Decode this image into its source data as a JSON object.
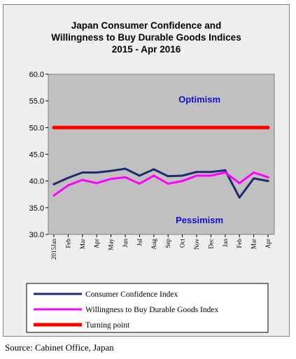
{
  "chart_data": {
    "type": "line",
    "title_lines": [
      "Japan Consumer Confidence and",
      "Willingness to Buy Durable Goods Indices",
      "2015 - Apr  2016"
    ],
    "categories": [
      "2015Jan",
      "Feb",
      "Mar",
      "Apr",
      "May",
      "Jun",
      "Jul",
      "Aug",
      "Sep",
      "Oct",
      "Nov",
      "Dec",
      "Jan",
      "Feb",
      "Mar",
      "Apr"
    ],
    "y_ticks": [
      "60.0",
      "55.0",
      "50.0",
      "45.0",
      "40.0",
      "35.0",
      "30.0"
    ],
    "ylim": [
      30,
      60
    ],
    "grid": false,
    "legend_position": "bottom",
    "series": [
      {
        "name": "Consumer Confidence Index",
        "color": "#1f2b6e",
        "values": [
          39.4,
          40.6,
          41.6,
          41.6,
          41.9,
          42.3,
          41.0,
          42.2,
          40.9,
          41.0,
          41.7,
          41.7,
          42.0,
          36.9,
          40.5,
          40.0
        ]
      },
      {
        "name": "Willingness to Buy Durable Goods Index",
        "color": "#ff00ff",
        "values": [
          37.3,
          39.2,
          40.2,
          39.6,
          40.4,
          40.7,
          39.5,
          41.0,
          39.5,
          40.0,
          41.0,
          41.0,
          41.6,
          39.6,
          41.6,
          40.7
        ]
      },
      {
        "name": "Turning point",
        "color": "#ff0000",
        "values": [
          50,
          50,
          50,
          50,
          50,
          50,
          50,
          50,
          50,
          50,
          50,
          50,
          50,
          50,
          50,
          50
        ]
      }
    ],
    "annotations": [
      {
        "text": "Optimism",
        "x_index": 10.2,
        "y": 54.7
      },
      {
        "text": "Pessimism",
        "x_index": 10.2,
        "y": 32.1
      }
    ]
  },
  "footer": {
    "source": "Source: Cabinet Office, Japan"
  }
}
